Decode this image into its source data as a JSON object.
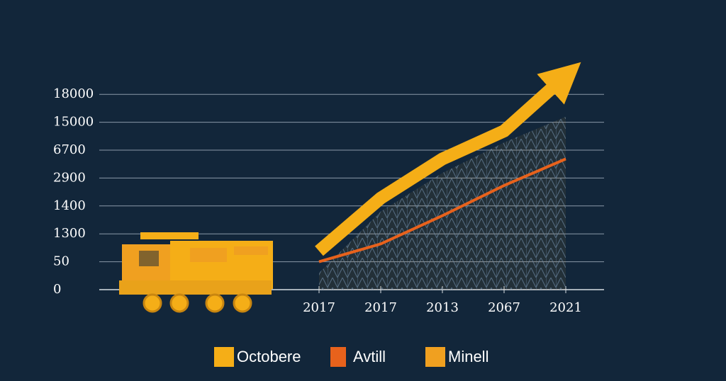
{
  "chart_data": {
    "type": "line",
    "categories": [
      "2017",
      "2017",
      "2013",
      "2067",
      "2021"
    ],
    "yticks": [
      0,
      50,
      1300,
      1400,
      2900,
      6700,
      15000,
      18000
    ],
    "ylim": [
      0,
      18000
    ],
    "grid": true,
    "legend": "bottom",
    "series": [
      {
        "name": "Octobere",
        "color": "#f5ae17",
        "values": [
          530,
          1820,
          5500,
          12400,
          20000
        ]
      },
      {
        "name": "Avtill",
        "color": "#e8621c",
        "values": [
          50,
          850,
          1365,
          2500,
          5500
        ]
      },
      {
        "name": "Minell",
        "color": "#f0a020",
        "values": [
          30,
          1380,
          3600,
          9000,
          15600
        ]
      }
    ]
  }
}
